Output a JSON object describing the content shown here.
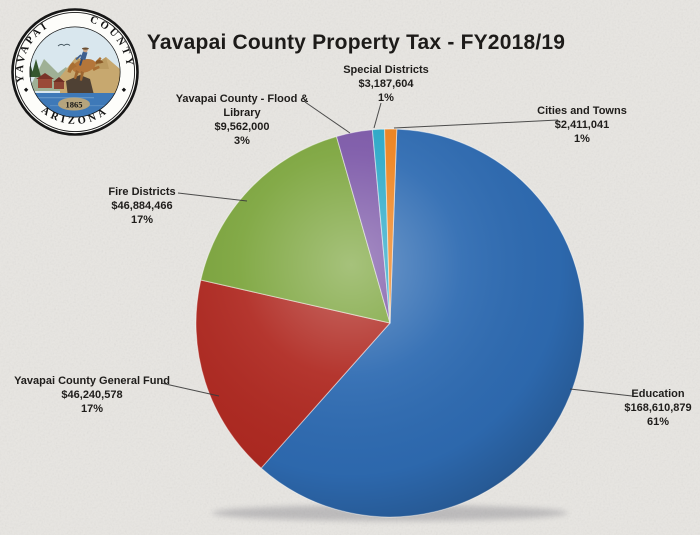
{
  "page": {
    "background_color": "#E8E6E2"
  },
  "title": "Yavapai County Property Tax - FY2018/19",
  "seal": {
    "county_word1": "YAVAPAI",
    "county_word2": "COUNTY",
    "state": "ARIZONA",
    "year": "1865"
  },
  "chart_data": {
    "type": "pie",
    "title": "Yavapai County Property Tax - FY2018/19",
    "start_angle": "top",
    "direction": "clockwise",
    "legend_position": "labels-with-leader-lines",
    "slices": [
      {
        "id": "education",
        "label": "Education",
        "amount": "$168,610,879",
        "value": 168610879,
        "percent": "61%",
        "pct": 61,
        "color": "#2E6BB2"
      },
      {
        "id": "general-fund",
        "label": "Yavapai County General Fund",
        "amount": "$46,240,578",
        "value": 46240578,
        "percent": "17%",
        "pct": 17,
        "color": "#B02A22"
      },
      {
        "id": "fire-districts",
        "label": "Fire Districts",
        "amount": "$46,884,466",
        "value": 46884466,
        "percent": "17%",
        "pct": 17,
        "color": "#7CA53D"
      },
      {
        "id": "flood-library",
        "label": "Yavapai County - Flood & Library",
        "amount": "$9,562,000",
        "value": 9562000,
        "percent": "3%",
        "pct": 3,
        "color": "#7C58A8"
      },
      {
        "id": "special-districts",
        "label": "Special Districts",
        "amount": "$3,187,604",
        "value": 3187604,
        "percent": "1%",
        "pct": 1,
        "color": "#2BA9C8"
      },
      {
        "id": "cities-towns",
        "label": "Cities and Towns",
        "amount": "$2,411,041",
        "value": 2411041,
        "percent": "1%",
        "pct": 1,
        "color": "#EE831E"
      }
    ]
  }
}
